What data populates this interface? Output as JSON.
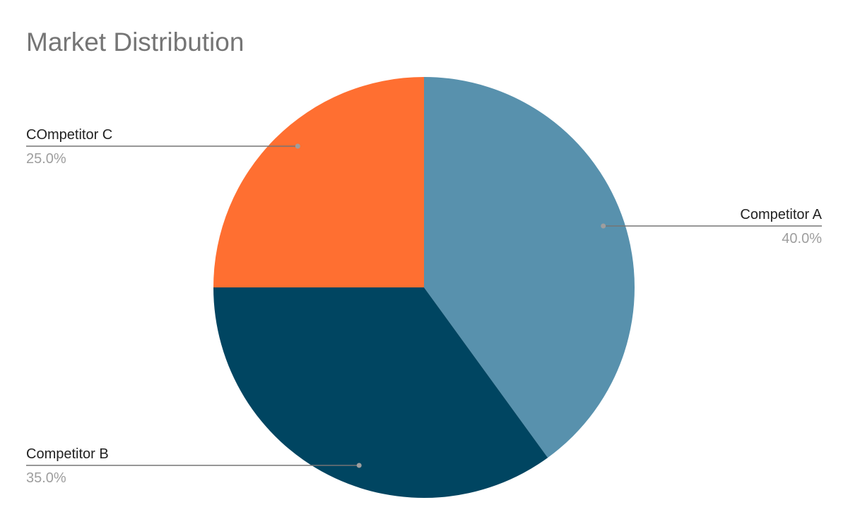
{
  "chart_data": {
    "type": "pie",
    "title": "Market Distribution",
    "slices": [
      {
        "label": "Competitor A",
        "value": 40.0,
        "value_label": "40.0%",
        "color": "#5891AD"
      },
      {
        "label": "Competitor B",
        "value": 35.0,
        "value_label": "35.0%",
        "color": "#004561"
      },
      {
        "label": "COmpetitor C",
        "value": 25.0,
        "value_label": "25.0%",
        "color": "#FF6F31"
      }
    ],
    "start_angle_deg": 0,
    "direction": "clockwise",
    "legend": "none",
    "label_style": "callout"
  }
}
